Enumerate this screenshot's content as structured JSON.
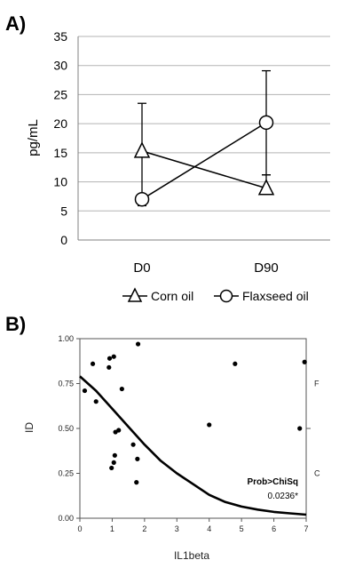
{
  "chart_data": [
    {
      "panel_label": "A)",
      "type": "line",
      "ylabel": "pg/mL",
      "ylim": [
        0,
        35
      ],
      "yticks": [
        "0",
        "5",
        "10",
        "15",
        "20",
        "25",
        "30",
        "35"
      ],
      "categories": [
        "D0",
        "D90"
      ],
      "grid": "horizontal",
      "legend_position": "bottom",
      "series": [
        {
          "name": "Corn oil",
          "marker": "triangle",
          "values": [
            15.3,
            8.9
          ],
          "err_low": [
            5.9,
            11.2
          ],
          "err_high": [
            23.5,
            8.9
          ]
        },
        {
          "name": "Flaxseed oil",
          "marker": "circle",
          "values": [
            7.0,
            20.2
          ],
          "err_low": [
            5.9,
            11.2
          ],
          "err_high": [
            7.0,
            29.1
          ]
        }
      ]
    },
    {
      "panel_label": "B)",
      "type": "scatter",
      "xlabel": "IL1beta",
      "ylabel": "ID",
      "xlim": [
        0,
        7
      ],
      "ylim": [
        0,
        1
      ],
      "xticks": [
        "0",
        "1",
        "2",
        "3",
        "4",
        "5",
        "6",
        "7"
      ],
      "yticks": [
        "0.00",
        "0.25",
        "0.50",
        "0.75",
        "1.00"
      ],
      "right_labels": [
        "F",
        "C"
      ],
      "points": [
        {
          "x": 0.15,
          "y": 0.71
        },
        {
          "x": 0.4,
          "y": 0.86
        },
        {
          "x": 0.5,
          "y": 0.65
        },
        {
          "x": 0.9,
          "y": 0.84
        },
        {
          "x": 0.92,
          "y": 0.89
        },
        {
          "x": 1.05,
          "y": 0.9
        },
        {
          "x": 1.8,
          "y": 0.97
        },
        {
          "x": 1.3,
          "y": 0.72
        },
        {
          "x": 1.1,
          "y": 0.48
        },
        {
          "x": 1.2,
          "y": 0.49
        },
        {
          "x": 1.08,
          "y": 0.35
        },
        {
          "x": 1.05,
          "y": 0.31
        },
        {
          "x": 0.98,
          "y": 0.28
        },
        {
          "x": 1.65,
          "y": 0.41
        },
        {
          "x": 1.78,
          "y": 0.33
        },
        {
          "x": 1.75,
          "y": 0.2
        },
        {
          "x": 4.0,
          "y": 0.52
        },
        {
          "x": 4.8,
          "y": 0.86
        },
        {
          "x": 6.8,
          "y": 0.5
        },
        {
          "x": 6.95,
          "y": 0.87
        }
      ],
      "curve": [
        {
          "x": 0,
          "y": 0.79
        },
        {
          "x": 0.5,
          "y": 0.71
        },
        {
          "x": 1.0,
          "y": 0.61
        },
        {
          "x": 1.5,
          "y": 0.51
        },
        {
          "x": 2.0,
          "y": 0.41
        },
        {
          "x": 2.5,
          "y": 0.32
        },
        {
          "x": 3.0,
          "y": 0.25
        },
        {
          "x": 3.5,
          "y": 0.19
        },
        {
          "x": 4.0,
          "y": 0.13
        },
        {
          "x": 4.5,
          "y": 0.09
        },
        {
          "x": 5.0,
          "y": 0.065
        },
        {
          "x": 5.5,
          "y": 0.048
        },
        {
          "x": 6.0,
          "y": 0.035
        },
        {
          "x": 6.5,
          "y": 0.027
        },
        {
          "x": 7.0,
          "y": 0.02
        }
      ],
      "annotation_title": "Prob>ChiSq",
      "annotation_value": "0.0236*"
    }
  ]
}
